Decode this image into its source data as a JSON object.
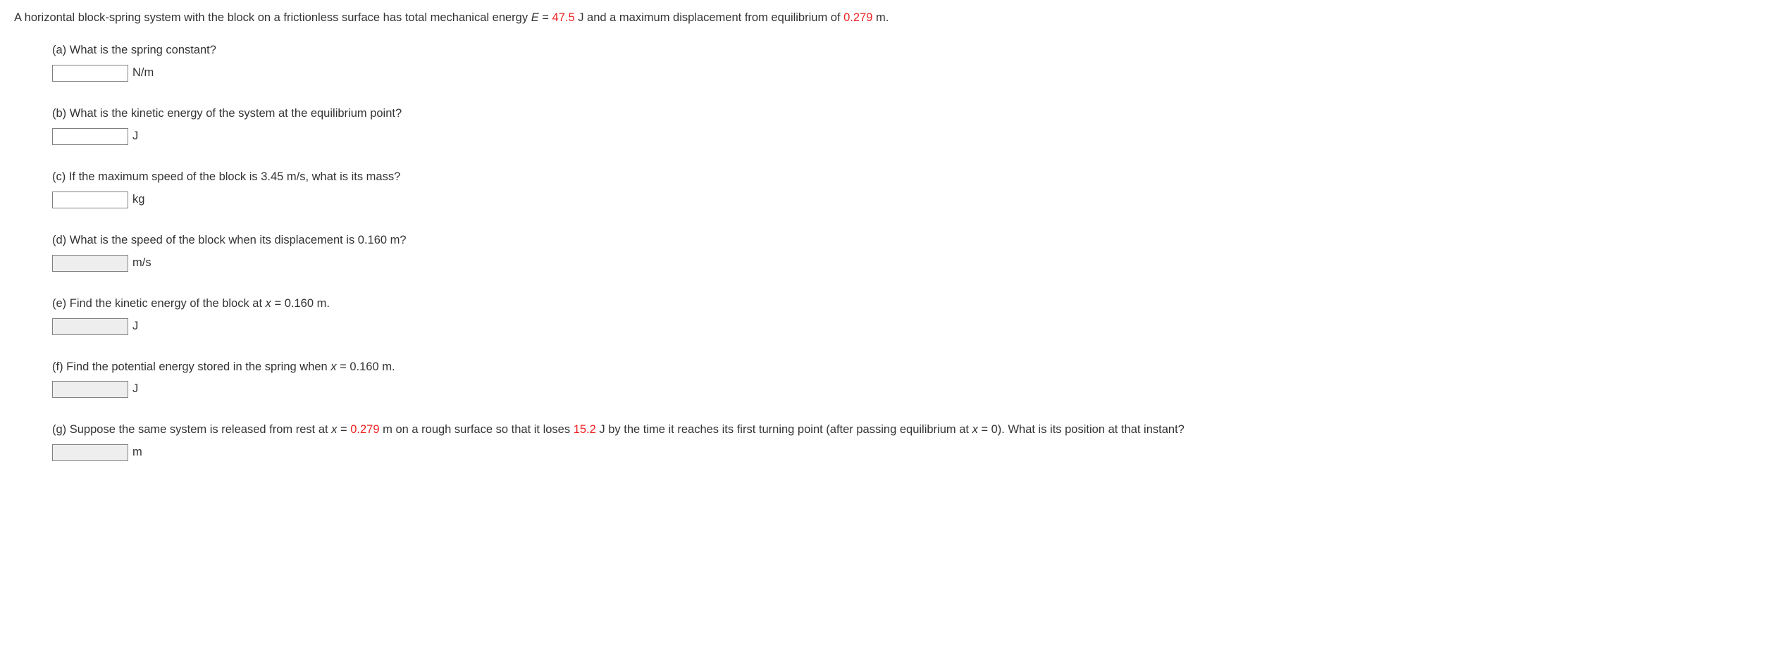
{
  "intro": {
    "pre": "A horizontal block-spring system with the block on a frictionless surface has total mechanical energy ",
    "Evar": "E",
    "eq": " = ",
    "Eval": "47.5",
    "mid": " J and a maximum displacement from equilibrium of ",
    "disp": "0.279",
    "post": " m."
  },
  "qa": {
    "prompt": "(a) What is the spring constant?",
    "unit": "N/m"
  },
  "qb": {
    "prompt": "(b) What is the kinetic energy of the system at the equilibrium point?",
    "unit": "J"
  },
  "qc": {
    "prompt": "(c) If the maximum speed of the block is 3.45 m/s, what is its mass?",
    "unit": "kg"
  },
  "qd": {
    "prompt": "(d) What is the speed of the block when its displacement is 0.160 m?",
    "unit": "m/s"
  },
  "qe": {
    "pre": "(e) Find the kinetic energy of the block at ",
    "xvar": "x",
    "rest": " = 0.160 m.",
    "unit": "J"
  },
  "qf": {
    "pre": "(f) Find the potential energy stored in the spring when ",
    "xvar": "x",
    "rest": " = 0.160 m.",
    "unit": "J"
  },
  "qg": {
    "pre": "(g) Suppose the same system is released from rest at ",
    "xvar1": "x",
    "mid1": " = ",
    "xval": "0.279",
    "mid2": " m on a rough surface so that it loses ",
    "loss": "15.2",
    "mid3": " J by the time it reaches its first turning point (after passing equilibrium at ",
    "xvar2": "x",
    "mid4": " = 0). What is its position at that instant?",
    "unit": "m"
  },
  "style": {
    "red": "#ee2222",
    "input_bg_active": "#ffffff",
    "input_bg_disabled": "#eeeeee",
    "border": "#808080",
    "font": "Verdana",
    "fontsize": 16.5
  }
}
